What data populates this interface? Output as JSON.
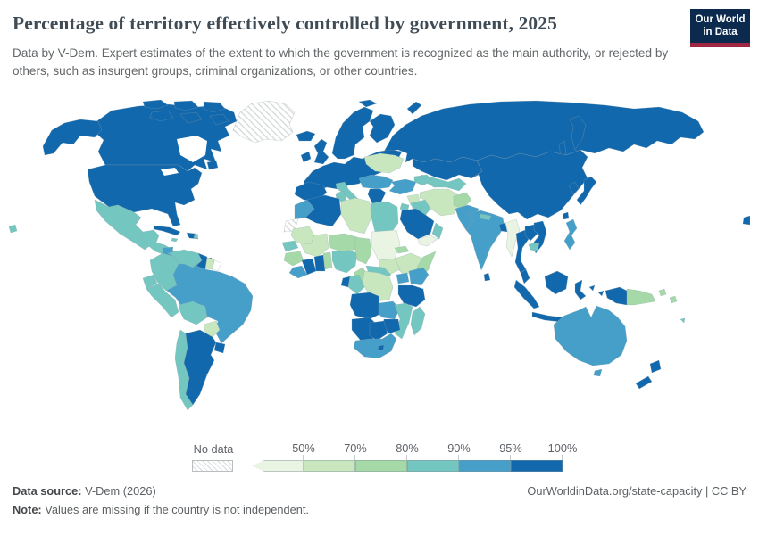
{
  "header": {
    "title": "Percentage of territory effectively controlled by government, 2025",
    "subtitle": "Data by V-Dem. Expert estimates of the extent to which the government is recognized as the main authority, or rejected by others, such as insurgent groups, criminal organizations, or other countries.",
    "logo_line1": "Our World",
    "logo_line2": "in Data",
    "logo_bg": "#0b2a4e",
    "logo_stripe": "#a02742"
  },
  "legend": {
    "no_data_label": "No data",
    "ticks": [
      "50%",
      "70%",
      "80%",
      "90%",
      "95%",
      "100%"
    ]
  },
  "footer": {
    "source_label": "Data source:",
    "source_value": "V-Dem (2026)",
    "note_label": "Note:",
    "note_value": "Values are missing if the country is not independent.",
    "credit": "OurWorldinData.org/state-capacity | CC BY"
  },
  "chart_data": {
    "type": "choropleth_map",
    "title": "Percentage of territory effectively controlled by government",
    "year": 2025,
    "unit": "% of territory effectively controlled by government",
    "legend_position": "bottom",
    "bins": [
      {
        "label": "<50%",
        "color": "#eaf4e2"
      },
      {
        "label": "50-70%",
        "color": "#c8e7bf"
      },
      {
        "label": "70-80%",
        "color": "#a5d9a8"
      },
      {
        "label": "80-90%",
        "color": "#74c7c0"
      },
      {
        "label": "90-95%",
        "color": "#459fc9"
      },
      {
        "label": "95-100%",
        "color": "#1268ad"
      }
    ],
    "no_data": {
      "label": "No data",
      "pattern": "diagonal-hatch"
    },
    "regions": {
      "greenland": "no-data",
      "canada": "95-100%",
      "united-states": "95-100%",
      "mexico": "80-90%",
      "central-america": "80-90%",
      "nicaragua": "90-95%",
      "cuba": "95-100%",
      "jamaica": "80-90%",
      "hispaniola": "95-100%",
      "dominican-republic": "80-90%",
      "trinidad-and-tobago": "95-100%",
      "brazil": "90-95%",
      "colombia": "80-90%",
      "venezuela": "80-90%",
      "guyana": "95-100%",
      "suriname": "50-70%",
      "french-guiana": "none",
      "ecuador": "80-90%",
      "peru": "80-90%",
      "bolivia": "80-90%",
      "paraguay": "50-70%",
      "chile": "80-90%",
      "argentina": "95-100%",
      "uruguay": "95-100%",
      "iceland": "95-100%",
      "ireland": "95-100%",
      "united-kingdom": "95-100%",
      "scandinavia": "95-100%",
      "finland": "95-100%",
      "continental-europe": "95-100%",
      "iberia": "95-100%",
      "italy": "80-90%",
      "balkans": "90-95%",
      "greece": "95-100%",
      "ukraine": "50-70%",
      "turkey": "90-95%",
      "caucasus": "80-90%",
      "russia": "95-100%",
      "kazakhstan": "95-100%",
      "central-asia": "80-90%",
      "china": "95-100%",
      "south-korea": "95-100%",
      "japan": "95-100%",
      "taiwan": "95-100%",
      "syria": "50-70%",
      "iraq": "80-90%",
      "jordan": "80-90%",
      "saudi-arabia": "95-100%",
      "yemen": "<50%",
      "oman": "80-90%",
      "iran": "50-70%",
      "afghanistan": "70-80%",
      "pakistan": "90-95%",
      "india": "90-95%",
      "nepal": "80-90%",
      "bangladesh": "95-100%",
      "sri-lanka": "95-100%",
      "myanmar": "<50%",
      "thailand": "95-100%",
      "laos": "95-100%",
      "vietnam": "95-100%",
      "cambodia": "80-90%",
      "malaysia": "95-100%",
      "indonesia": "95-100%",
      "philippines": "90-95%",
      "papua-new-guinea": "70-80%",
      "australia": "90-95%",
      "new-zealand": "95-100%",
      "fiji": "80-90%",
      "morocco": "90-95%",
      "western-sahara": "no-data",
      "algeria": "95-100%",
      "tunisia": "80-90%",
      "libya": "50-70%",
      "egypt": "80-90%",
      "mauritania": "50-70%",
      "mali": "50-70%",
      "senegal": "80-90%",
      "guinea": "70-80%",
      "sierra-leone-liberia": "90-95%",
      "ivory-coast": "95-100%",
      "ghana": "95-100%",
      "togo-benin": "70-80%",
      "nigeria": "80-90%",
      "niger": "70-80%",
      "chad": "70-80%",
      "sudan": "<50%",
      "eritrea": "70-80%",
      "ethiopia": "50-70%",
      "somalia": "70-80%",
      "south-sudan": "50-70%",
      "central-african-republic": "80-90%",
      "cameroon": "70-80%",
      "gabon": "95-100%",
      "congo": "80-90%",
      "democratic-republic-of-congo": "50-70%",
      "uganda": "90-95%",
      "kenya": "90-95%",
      "tanzania": "95-100%",
      "angola": "95-100%",
      "zambia": "90-95%",
      "mozambique": "80-90%",
      "zimbabwe": "95-100%",
      "namibia": "95-100%",
      "botswana": "95-100%",
      "south-africa": "90-95%",
      "lesotho": "95-100%",
      "madagascar": "80-90%"
    }
  }
}
